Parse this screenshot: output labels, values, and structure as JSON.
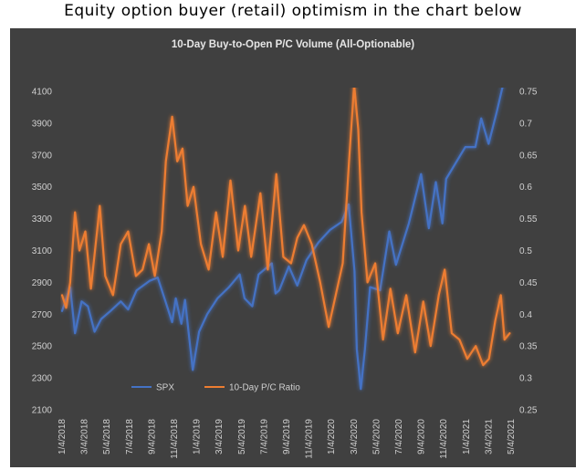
{
  "heading": "Equity option buyer (retail) optimism in the chart below",
  "chart_data": {
    "type": "line",
    "title": "10-Day Buy-to-Open P/C Volume (All-Optionable)",
    "x_tick_labels": [
      "1/4/2018",
      "3/4/2018",
      "5/4/2018",
      "7/4/2018",
      "9/4/2018",
      "11/4/2018",
      "1/4/2019",
      "3/4/2019",
      "5/4/2019",
      "7/4/2019",
      "9/4/2019",
      "11/4/2019",
      "1/4/2020",
      "3/4/2020",
      "5/4/2020",
      "7/4/2020",
      "9/4/2020",
      "11/4/2020",
      "1/4/2021",
      "3/4/2021",
      "5/4/2021"
    ],
    "y_left": {
      "ticks": [
        2100,
        2300,
        2500,
        2700,
        2900,
        3100,
        3300,
        3500,
        3700,
        3900,
        4100
      ],
      "ylim": [
        2100,
        4100
      ]
    },
    "y_right": {
      "ticks": [
        "0.25",
        "0.3",
        "0.35",
        "0.4",
        "0.45",
        "0.5",
        "0.55",
        "0.6",
        "0.65",
        "0.7",
        "0.75"
      ],
      "ylim": [
        0.25,
        0.75
      ]
    },
    "grid": false,
    "legend_position": "bottom-left",
    "series": [
      {
        "name": "SPX",
        "axis": "left",
        "color": "#4472c4",
        "x": [
          "2018-01-04",
          "2018-01-26",
          "2018-02-08",
          "2018-02-26",
          "2018-03-15",
          "2018-04-02",
          "2018-04-20",
          "2018-05-15",
          "2018-06-12",
          "2018-07-02",
          "2018-07-25",
          "2018-08-29",
          "2018-09-20",
          "2018-10-11",
          "2018-10-29",
          "2018-11-08",
          "2018-11-23",
          "2018-12-03",
          "2018-12-24",
          "2019-01-10",
          "2019-02-01",
          "2019-03-01",
          "2019-04-01",
          "2019-04-30",
          "2019-05-13",
          "2019-06-03",
          "2019-06-20",
          "2019-07-26",
          "2019-08-05",
          "2019-08-15",
          "2019-09-10",
          "2019-10-03",
          "2019-10-28",
          "2019-11-29",
          "2019-12-31",
          "2020-01-31",
          "2020-02-19",
          "2020-03-06",
          "2020-03-12",
          "2020-03-23",
          "2020-04-03",
          "2020-04-17",
          "2020-05-14",
          "2020-06-08",
          "2020-06-26",
          "2020-07-31",
          "2020-09-02",
          "2020-09-23",
          "2020-10-12",
          "2020-10-30",
          "2020-11-09",
          "2020-12-31",
          "2021-01-27",
          "2021-02-12",
          "2021-03-04",
          "2021-03-26",
          "2021-04-16",
          "2021-04-29"
        ],
        "values": [
          2720,
          2870,
          2580,
          2780,
          2750,
          2590,
          2670,
          2720,
          2780,
          2730,
          2850,
          2910,
          2930,
          2780,
          2650,
          2800,
          2640,
          2790,
          2350,
          2590,
          2700,
          2800,
          2870,
          2950,
          2800,
          2750,
          2950,
          3020,
          2830,
          2850,
          3000,
          2880,
          3040,
          3150,
          3230,
          3280,
          3390,
          2970,
          2480,
          2230,
          2480,
          2870,
          2850,
          3220,
          3010,
          3270,
          3580,
          3240,
          3530,
          3270,
          3550,
          3750,
          3750,
          3930,
          3770,
          3970,
          4180,
          4200
        ]
      },
      {
        "name": "10-Day P/C Ratio",
        "axis": "right",
        "color": "#ed7d31",
        "x": [
          "2018-01-04",
          "2018-01-15",
          "2018-01-26",
          "2018-02-08",
          "2018-02-20",
          "2018-03-08",
          "2018-03-23",
          "2018-04-16",
          "2018-05-01",
          "2018-05-22",
          "2018-06-12",
          "2018-07-02",
          "2018-07-23",
          "2018-08-10",
          "2018-08-27",
          "2018-09-12",
          "2018-10-01",
          "2018-10-12",
          "2018-10-29",
          "2018-11-12",
          "2018-11-26",
          "2018-12-10",
          "2018-12-26",
          "2019-01-15",
          "2019-02-05",
          "2019-02-25",
          "2019-03-15",
          "2019-04-05",
          "2019-04-26",
          "2019-05-14",
          "2019-05-31",
          "2019-06-25",
          "2019-07-15",
          "2019-08-07",
          "2019-08-26",
          "2019-09-16",
          "2019-10-03",
          "2019-10-21",
          "2019-11-11",
          "2019-12-04",
          "2019-12-27",
          "2020-01-15",
          "2020-02-03",
          "2020-02-20",
          "2020-03-05",
          "2020-03-16",
          "2020-03-25",
          "2020-04-10",
          "2020-05-01",
          "2020-05-22",
          "2020-06-11",
          "2020-07-01",
          "2020-07-24",
          "2020-08-17",
          "2020-09-08",
          "2020-09-28",
          "2020-10-20",
          "2020-11-05",
          "2020-11-24",
          "2020-12-15",
          "2021-01-05",
          "2021-01-28",
          "2021-02-17",
          "2021-03-05",
          "2021-03-22",
          "2021-04-06",
          "2021-04-16",
          "2021-04-30"
        ],
        "values": [
          0.43,
          0.41,
          0.45,
          0.56,
          0.5,
          0.53,
          0.44,
          0.57,
          0.46,
          0.43,
          0.51,
          0.53,
          0.46,
          0.47,
          0.51,
          0.46,
          0.53,
          0.64,
          0.71,
          0.64,
          0.66,
          0.57,
          0.6,
          0.51,
          0.47,
          0.56,
          0.49,
          0.61,
          0.5,
          0.57,
          0.49,
          0.59,
          0.47,
          0.62,
          0.49,
          0.48,
          0.52,
          0.54,
          0.51,
          0.45,
          0.38,
          0.43,
          0.48,
          0.64,
          0.76,
          0.69,
          0.56,
          0.45,
          0.48,
          0.36,
          0.44,
          0.37,
          0.43,
          0.34,
          0.42,
          0.35,
          0.43,
          0.47,
          0.37,
          0.36,
          0.33,
          0.35,
          0.32,
          0.33,
          0.39,
          0.43,
          0.36,
          0.37
        ]
      }
    ]
  }
}
